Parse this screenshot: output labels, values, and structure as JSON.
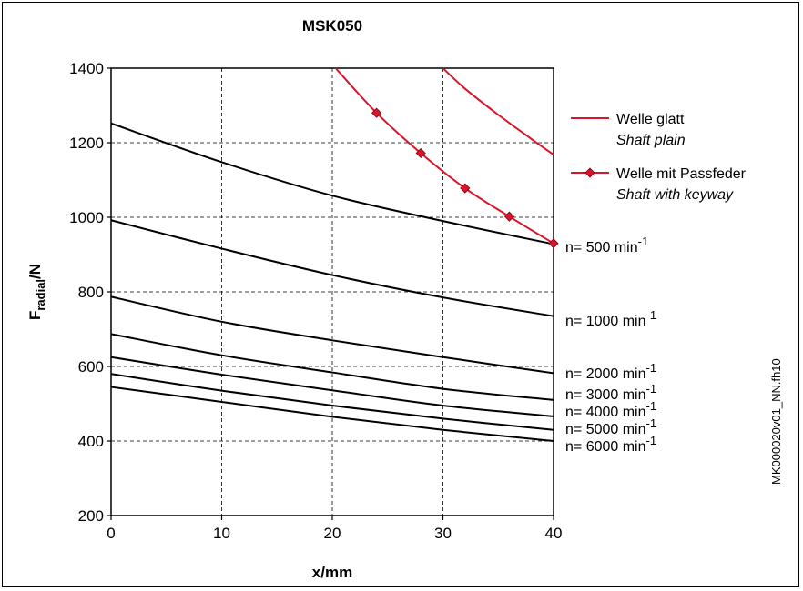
{
  "chart_data": {
    "type": "line",
    "title": "MSK050",
    "xlabel": "x/mm",
    "ylabel": {
      "main": "F",
      "sub": "radial",
      "suffix": "/N"
    },
    "xlim": [
      0,
      40
    ],
    "ylim": [
      200,
      1400
    ],
    "xticks": [
      "0",
      "10",
      "20",
      "30",
      "40"
    ],
    "yticks": [
      "200",
      "400",
      "600",
      "800",
      "1000",
      "1200",
      "1400"
    ],
    "grid": "dashed",
    "legend_position": "right",
    "legend": [
      {
        "de": "Welle glatt",
        "en": "Shaft plain"
      },
      {
        "de": "Welle mit Passfeder",
        "en": "Shaft with keyway"
      }
    ],
    "colors": {
      "speed_curves": "#000000",
      "shaft_curves": "#d9142b"
    },
    "speed_series": [
      {
        "name": "n= 500 min",
        "exp": "-1",
        "x": [
          0,
          10,
          20,
          30,
          40
        ],
        "y": [
          1252,
          1148,
          1058,
          990,
          928
        ]
      },
      {
        "name": "n= 1000 min",
        "exp": "-1",
        "x": [
          0,
          10,
          20,
          30,
          40
        ],
        "y": [
          992,
          916,
          845,
          785,
          735
        ]
      },
      {
        "name": "n= 2000 min",
        "exp": "-1",
        "x": [
          0,
          10,
          20,
          30,
          40
        ],
        "y": [
          787,
          720,
          670,
          625,
          582
        ]
      },
      {
        "name": "n= 3000 min",
        "exp": "-1",
        "x": [
          0,
          10,
          20,
          30,
          40
        ],
        "y": [
          687,
          630,
          584,
          540,
          510
        ]
      },
      {
        "name": "n= 4000 min",
        "exp": "-1",
        "x": [
          0,
          10,
          20,
          30,
          40
        ],
        "y": [
          625,
          578,
          536,
          495,
          466
        ]
      },
      {
        "name": "n= 5000 min",
        "exp": "-1",
        "x": [
          0,
          10,
          20,
          30,
          40
        ],
        "y": [
          580,
          535,
          495,
          460,
          430
        ]
      },
      {
        "name": "n= 6000 min",
        "exp": "-1",
        "x": [
          0,
          10,
          20,
          30,
          40
        ],
        "y": [
          545,
          505,
          465,
          430,
          400
        ]
      }
    ],
    "shaft_series": [
      {
        "name": "Welle glatt",
        "markers": false,
        "x": [
          30,
          32,
          35,
          38,
          40
        ],
        "y": [
          1400,
          1345,
          1275,
          1210,
          1168
        ]
      },
      {
        "name": "Welle mit Passfeder",
        "markers": true,
        "x": [
          20.3,
          24,
          28,
          32,
          36,
          40
        ],
        "y": [
          1400,
          1280,
          1172,
          1078,
          1002,
          930
        ]
      }
    ]
  },
  "side_note": "MK000020v01_NN.fh10"
}
